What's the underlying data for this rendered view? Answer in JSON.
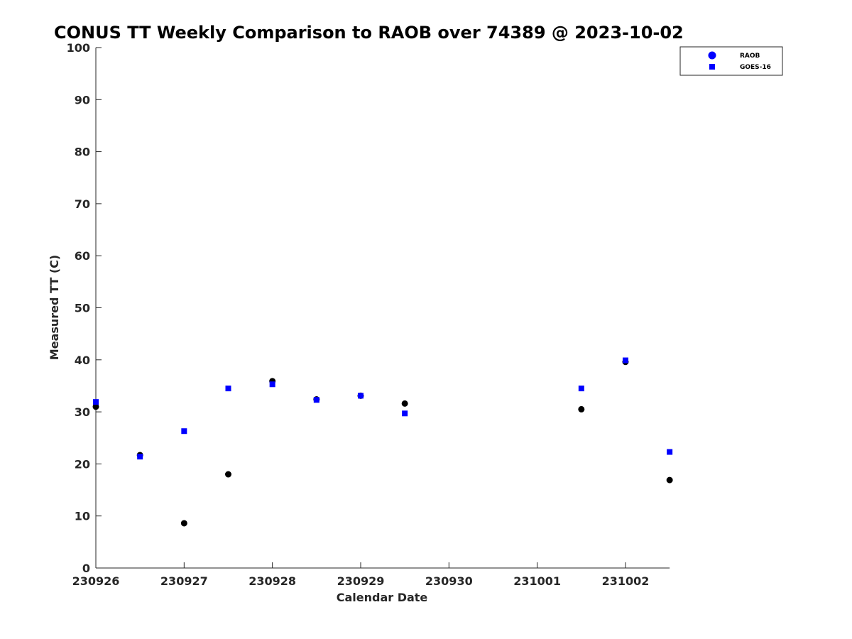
{
  "chart_data": {
    "type": "scatter",
    "title": "CONUS TT Weekly Comparison to RAOB over 74389 @ 2023-10-02",
    "xlabel": "Calendar Date",
    "ylabel": "Measured TT (C)",
    "x_ticks": [
      "230926",
      "230927",
      "230928",
      "230929",
      "230930",
      "231001",
      "231002"
    ],
    "xlim": [
      "230926",
      "231002 12Z"
    ],
    "ylim": [
      0,
      100
    ],
    "y_ticks": [
      0,
      10,
      20,
      30,
      40,
      50,
      60,
      70,
      80,
      90,
      100
    ],
    "grid": false,
    "legend_position": "top-right",
    "series": [
      {
        "name": "RAOB",
        "legend_marker": "circle",
        "legend_color": "#0000ff",
        "marker_color": "#000000",
        "points": [
          {
            "x": "230926 00Z",
            "y": 31.0
          },
          {
            "x": "230926 12Z",
            "y": 21.7
          },
          {
            "x": "230927 00Z",
            "y": 8.6
          },
          {
            "x": "230927 12Z",
            "y": 18.0
          },
          {
            "x": "230928 00Z",
            "y": 35.9
          },
          {
            "x": "230928 12Z",
            "y": 32.4
          },
          {
            "x": "230929 00Z",
            "y": 33.1
          },
          {
            "x": "230929 12Z",
            "y": 31.6
          },
          {
            "x": "231001 12Z",
            "y": 30.5
          },
          {
            "x": "231002 00Z",
            "y": 39.6
          },
          {
            "x": "231002 12Z",
            "y": 16.9
          }
        ]
      },
      {
        "name": "GOES-16",
        "legend_marker": "square",
        "legend_color": "#0000ff",
        "marker_color": "#0000ff",
        "points": [
          {
            "x": "230926 00Z",
            "y": 31.9
          },
          {
            "x": "230926 12Z",
            "y": 21.4
          },
          {
            "x": "230927 00Z",
            "y": 26.3
          },
          {
            "x": "230927 12Z",
            "y": 34.5
          },
          {
            "x": "230928 00Z",
            "y": 35.3
          },
          {
            "x": "230928 12Z",
            "y": 32.3
          },
          {
            "x": "230929 00Z",
            "y": 33.1
          },
          {
            "x": "230929 12Z",
            "y": 29.7
          },
          {
            "x": "231001 12Z",
            "y": 34.5
          },
          {
            "x": "231002 00Z",
            "y": 39.9
          },
          {
            "x": "231002 12Z",
            "y": 22.3
          }
        ]
      }
    ]
  }
}
